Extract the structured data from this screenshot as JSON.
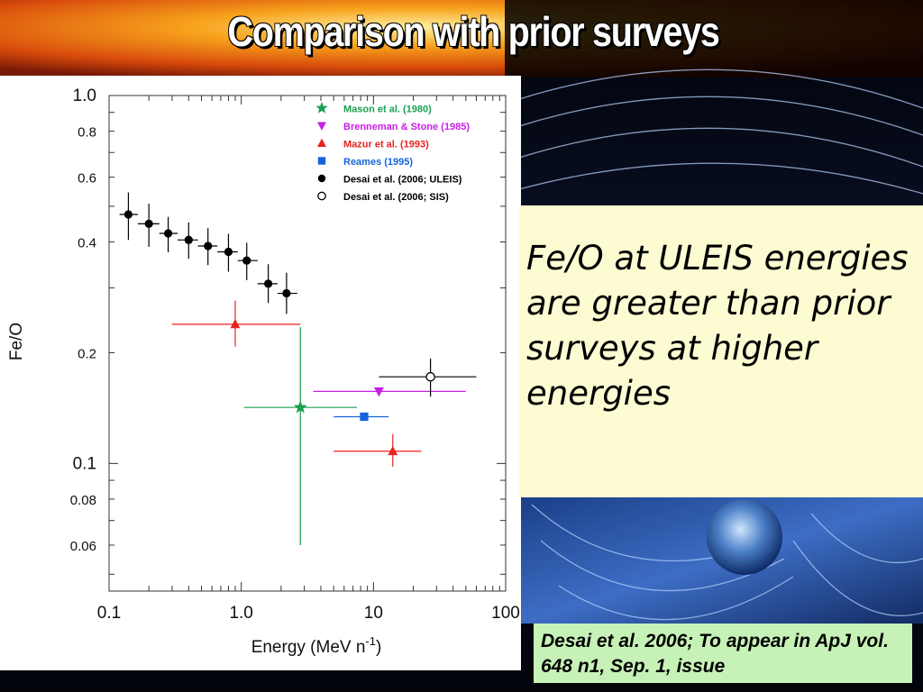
{
  "slide": {
    "title": "Comparison with prior surveys",
    "note": "Fe/O at ULEIS energies are greater than prior surveys at higher energies",
    "citation": "Desai et al. 2006; To appear in ApJ vol. 648 n1, Sep. 1, issue"
  },
  "chart_data": {
    "type": "scatter",
    "xlabel": "Energy (MeV n",
    "xlabel_sup": "-1",
    "xlabel_close": ")",
    "ylabel": "Fe/O",
    "xscale": "log",
    "yscale": "log",
    "xlim": [
      0.1,
      100
    ],
    "ylim": [
      0.045,
      1.0
    ],
    "x_ticks": [
      {
        "value": 0.1,
        "label": "0.1"
      },
      {
        "value": 1.0,
        "label": "1.0"
      },
      {
        "value": 10,
        "label": "10"
      },
      {
        "value": 100,
        "label": "100"
      }
    ],
    "y_ticks": [
      {
        "value": 1.0,
        "label": "1.0",
        "major": true
      },
      {
        "value": 0.8,
        "label": "0.8",
        "major": false
      },
      {
        "value": 0.6,
        "label": "0.6",
        "major": false
      },
      {
        "value": 0.4,
        "label": "0.4",
        "major": false
      },
      {
        "value": 0.2,
        "label": "0.2",
        "major": false
      },
      {
        "value": 0.1,
        "label": "0.1",
        "major": true
      },
      {
        "value": 0.08,
        "label": "0.08",
        "major": false
      },
      {
        "value": 0.06,
        "label": "0.06",
        "major": false
      }
    ],
    "legend_position": "top-right",
    "series": [
      {
        "name": "Mason et al. (1980)",
        "marker": "star",
        "color": "#1aa050",
        "points": [
          {
            "x": 2.8,
            "y": 0.142,
            "xerr": [
              1.05,
              7.5
            ],
            "yerr": [
              0.06,
              0.235
            ]
          }
        ]
      },
      {
        "name": "Brenneman & Stone (1985)",
        "marker": "triangle-down",
        "color": "#c81ee6",
        "points": [
          {
            "x": 11.0,
            "y": 0.157,
            "xerr": [
              3.5,
              50
            ],
            "yerr": null
          }
        ]
      },
      {
        "name": "Mazur et al. (1993)",
        "marker": "triangle-up",
        "color": "#e8231e",
        "points": [
          {
            "x": 0.9,
            "y": 0.239,
            "xerr": [
              0.3,
              2.8
            ],
            "yerr": [
              0.208,
              0.277
            ]
          },
          {
            "x": 14.0,
            "y": 0.108,
            "xerr": [
              5.0,
              23.0
            ],
            "yerr": [
              0.098,
              0.12
            ]
          }
        ]
      },
      {
        "name": "Reames (1995)",
        "marker": "square",
        "color": "#1464dc",
        "points": [
          {
            "x": 8.5,
            "y": 0.134,
            "xerr": [
              5.0,
              13.0
            ],
            "yerr": null
          }
        ]
      },
      {
        "name": "Desai et al. (2006; ULEIS)",
        "marker": "circle",
        "color": "#000000",
        "points": [
          {
            "x": 0.14,
            "y": 0.475,
            "xerr": [
              0.12,
              0.165
            ],
            "yerr": [
              0.405,
              0.545
            ]
          },
          {
            "x": 0.2,
            "y": 0.448,
            "xerr": [
              0.165,
              0.24
            ],
            "yerr": [
              0.388,
              0.508
            ]
          },
          {
            "x": 0.28,
            "y": 0.422,
            "xerr": [
              0.24,
              0.33
            ],
            "yerr": [
              0.375,
              0.468
            ]
          },
          {
            "x": 0.4,
            "y": 0.405,
            "xerr": [
              0.33,
              0.47
            ],
            "yerr": [
              0.36,
              0.452
            ]
          },
          {
            "x": 0.56,
            "y": 0.39,
            "xerr": [
              0.47,
              0.66
            ],
            "yerr": [
              0.346,
              0.436
            ]
          },
          {
            "x": 0.8,
            "y": 0.376,
            "xerr": [
              0.66,
              0.94
            ],
            "yerr": [
              0.332,
              0.421
            ]
          },
          {
            "x": 1.1,
            "y": 0.356,
            "xerr": [
              0.94,
              1.33
            ],
            "yerr": [
              0.315,
              0.398
            ]
          },
          {
            "x": 1.6,
            "y": 0.308,
            "xerr": [
              1.33,
              1.88
            ],
            "yerr": [
              0.273,
              0.348
            ]
          },
          {
            "x": 2.2,
            "y": 0.29,
            "xerr": [
              1.88,
              2.65
            ],
            "yerr": [
              0.255,
              0.33
            ]
          }
        ]
      },
      {
        "name": "Desai et al. (2006; SIS)",
        "marker": "circle-open",
        "color": "#000000",
        "points": [
          {
            "x": 27.0,
            "y": 0.172,
            "xerr": [
              11.0,
              60.0
            ],
            "yerr": [
              0.152,
              0.193
            ]
          }
        ]
      }
    ]
  }
}
